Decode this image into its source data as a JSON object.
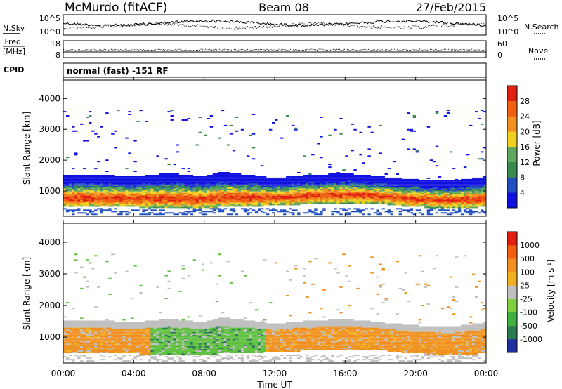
{
  "header": {
    "station": "McMurdo (fitACF)",
    "beam": "Beam 08",
    "date": "27/Feb/2015"
  },
  "top_panels": {
    "nsky_label": "N.Sky",
    "nsearch_label": "N.Search",
    "noise_ticks": [
      "10^5",
      "10^0"
    ],
    "freq_label_1": "Freq.",
    "freq_label_2": "[MHz]",
    "freq_ticks": [
      "18",
      "8"
    ],
    "nave_label": "Nave",
    "nave_ticks": [
      "60",
      "0"
    ],
    "cpid_label": "CPID",
    "cpid_value": "normal (fast) -151 RF"
  },
  "chart_data": [
    {
      "type": "heatmap",
      "name": "power",
      "xlabel": "Time UT",
      "ylabel": "Slant Range [km]",
      "x_ticks": [
        "00:00",
        "04:00",
        "08:00",
        "12:00",
        "16:00",
        "20:00",
        "00:00"
      ],
      "xlim_hours": [
        0,
        24
      ],
      "y_ticks": [
        1000,
        2000,
        3000,
        4000
      ],
      "ylim_km": [
        180,
        4600
      ],
      "colorbar": {
        "label": "Power [dB]",
        "ticks": [
          "4",
          "8",
          "12",
          "16",
          "20",
          "24",
          "28"
        ],
        "range": [
          0,
          30
        ],
        "colors": [
          "#1010e0",
          "#2050c0",
          "#3a8a50",
          "#60a860",
          "#f0d020",
          "#f09020",
          "#f06010",
          "#e02010"
        ]
      },
      "echo_band": [
        {
          "t": 0,
          "low": 450,
          "high": 1500
        },
        {
          "t": 2,
          "low": 450,
          "high": 1500
        },
        {
          "t": 4,
          "low": 450,
          "high": 1450
        },
        {
          "t": 6,
          "low": 420,
          "high": 1550
        },
        {
          "t": 8,
          "low": 420,
          "high": 1450
        },
        {
          "t": 9,
          "low": 450,
          "high": 1600
        },
        {
          "t": 12,
          "low": 500,
          "high": 1400
        },
        {
          "t": 14,
          "low": 550,
          "high": 1500
        },
        {
          "t": 16,
          "low": 580,
          "high": 1550
        },
        {
          "t": 18,
          "low": 560,
          "high": 1450
        },
        {
          "t": 20,
          "low": 450,
          "high": 1350
        },
        {
          "t": 22,
          "low": 430,
          "high": 1300
        },
        {
          "t": 24,
          "low": 450,
          "high": 1450
        }
      ]
    },
    {
      "type": "heatmap",
      "name": "velocity",
      "xlabel": "Time UT",
      "ylabel": "Slant Range [km]",
      "x_ticks": [
        "00:00",
        "04:00",
        "08:00",
        "12:00",
        "16:00",
        "20:00",
        "00:00"
      ],
      "xlim_hours": [
        0,
        24
      ],
      "y_ticks": [
        1000,
        2000,
        3000,
        4000
      ],
      "ylim_km": [
        180,
        4600
      ],
      "colorbar": {
        "label": "Velocity [m s",
        "label_superscript": "-1",
        "label_close": "]",
        "ticks": [
          "1000",
          "500",
          "100",
          "25",
          "-25",
          "-100",
          "-500",
          "-1000"
        ],
        "colors": [
          "#2030a0",
          "#2a7a50",
          "#40b040",
          "#80d040",
          "#c0c0c0",
          "#f0b020",
          "#f09020",
          "#f06010",
          "#e02010"
        ]
      },
      "regimes": [
        {
          "t_start": 0,
          "t_end": 5,
          "color": "orange"
        },
        {
          "t_start": 5,
          "t_end": 11.5,
          "color": "green"
        },
        {
          "t_start": 11.5,
          "t_end": 24,
          "color": "orange"
        }
      ]
    }
  ]
}
